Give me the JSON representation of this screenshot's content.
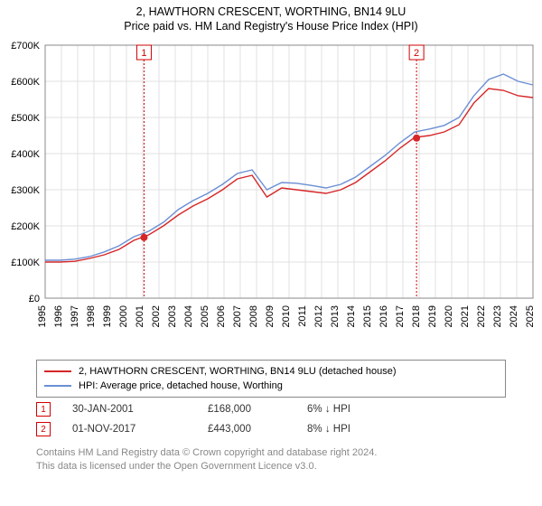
{
  "title_line1": "2, HAWTHORN CRESCENT, WORTHING, BN14 9LU",
  "title_line2": "Price paid vs. HM Land Registry's House Price Index (HPI)",
  "chart": {
    "type": "line",
    "background_color": "#ffffff",
    "plot_border_color": "#888888",
    "grid_color": "#e0e0e0",
    "x_axis": {
      "label_fontsize": 11,
      "label_rotation": -90,
      "tick_labels": [
        "1995",
        "1996",
        "1997",
        "1998",
        "1999",
        "2000",
        "2001",
        "2002",
        "2003",
        "2004",
        "2005",
        "2006",
        "2007",
        "2008",
        "2009",
        "2010",
        "2011",
        "2012",
        "2013",
        "2014",
        "2015",
        "2016",
        "2017",
        "2018",
        "2019",
        "2020",
        "2021",
        "2022",
        "2023",
        "2024",
        "2025"
      ],
      "range": [
        1995,
        2025
      ]
    },
    "y_axis": {
      "label_fontsize": 11,
      "tick_labels": [
        "£0",
        "£100K",
        "£200K",
        "£300K",
        "£400K",
        "£500K",
        "£600K",
        "£700K"
      ],
      "tick_values": [
        0,
        100,
        200,
        300,
        400,
        500,
        600,
        700
      ],
      "range": [
        0,
        700
      ]
    },
    "series": [
      {
        "name": "2, HAWTHORN CRESCENT, WORTHING, BN14 9LU (detached house)",
        "color": "#d62728",
        "line_width": 1.4,
        "y_values": [
          100,
          100,
          102,
          110,
          120,
          135,
          160,
          175,
          200,
          230,
          255,
          275,
          300,
          330,
          340,
          280,
          305,
          300,
          295,
          290,
          300,
          320,
          350,
          380,
          415,
          445,
          450,
          460,
          480,
          540,
          580,
          575,
          560,
          555
        ]
      },
      {
        "name": "HPI: Average price, detached house, Worthing",
        "color": "#6b8fd4",
        "line_width": 1.4,
        "y_values": [
          105,
          105,
          108,
          115,
          128,
          145,
          170,
          185,
          210,
          245,
          270,
          290,
          315,
          345,
          355,
          300,
          320,
          318,
          312,
          305,
          315,
          335,
          365,
          395,
          430,
          460,
          468,
          478,
          500,
          560,
          605,
          620,
          600,
          590
        ]
      }
    ],
    "event_markers": [
      {
        "id": "1",
        "x_year": 2001.08,
        "dot_y": 168,
        "box_color": "#d00000",
        "line_color": "#d00000"
      },
      {
        "id": "2",
        "x_year": 2017.84,
        "dot_y": 443,
        "box_color": "#d00000",
        "line_color": "#d00000"
      }
    ],
    "dot_color": "#d62728",
    "dot_radius": 4
  },
  "legend": {
    "items": [
      {
        "color": "#d62728",
        "label": "2, HAWTHORN CRESCENT, WORTHING, BN14 9LU (detached house)"
      },
      {
        "color": "#6b8fd4",
        "label": "HPI: Average price, detached house, Worthing"
      }
    ]
  },
  "data_rows": [
    {
      "marker": "1",
      "date": "30-JAN-2001",
      "price": "£168,000",
      "pct": "6% ↓ HPI"
    },
    {
      "marker": "2",
      "date": "01-NOV-2017",
      "price": "£443,000",
      "pct": "8% ↓ HPI"
    }
  ],
  "license_line1": "Contains HM Land Registry data © Crown copyright and database right 2024.",
  "license_line2": "This data is licensed under the Open Government Licence v3.0."
}
